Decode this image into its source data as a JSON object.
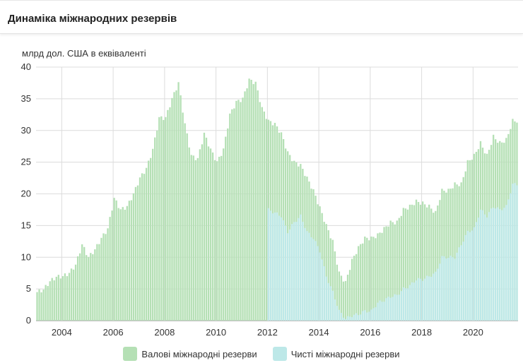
{
  "header": {
    "title": "Динаміка міжнародних резервів"
  },
  "chart_data": {
    "type": "bar",
    "title": "Динаміка міжнародних резервів",
    "ylabel": "млрд дол. США в еквіваленті",
    "xlabel": "",
    "ylim": [
      0,
      40
    ],
    "y_ticks": [
      "0",
      "5",
      "10",
      "15",
      "20",
      "25",
      "30",
      "35",
      "40"
    ],
    "x_ticks": [
      "2004",
      "2006",
      "2008",
      "2010",
      "2012",
      "2014",
      "2016",
      "2018",
      "2020"
    ],
    "x_range": [
      2003.0,
      2021.75
    ],
    "grid": true,
    "legend_position": "bottom-center",
    "series": [
      {
        "name": "Валові міжнародні резерви",
        "color": "#b5e0b5",
        "points": [
          [
            2003.0,
            4.5
          ],
          [
            2003.25,
            4.9
          ],
          [
            2003.5,
            6.2
          ],
          [
            2003.75,
            6.9
          ],
          [
            2004.0,
            7.0
          ],
          [
            2004.25,
            7.5
          ],
          [
            2004.5,
            8.8
          ],
          [
            2004.75,
            12.0
          ],
          [
            2005.0,
            10.0
          ],
          [
            2005.25,
            11.2
          ],
          [
            2005.5,
            13.0
          ],
          [
            2005.75,
            14.5
          ],
          [
            2006.0,
            19.3
          ],
          [
            2006.25,
            17.5
          ],
          [
            2006.5,
            18.0
          ],
          [
            2006.75,
            20.0
          ],
          [
            2007.0,
            22.5
          ],
          [
            2007.25,
            24.0
          ],
          [
            2007.5,
            27.0
          ],
          [
            2007.75,
            32.0
          ],
          [
            2008.0,
            32.0
          ],
          [
            2008.25,
            35.0
          ],
          [
            2008.5,
            37.5
          ],
          [
            2008.75,
            31.0
          ],
          [
            2009.0,
            26.0
          ],
          [
            2009.25,
            25.5
          ],
          [
            2009.5,
            29.5
          ],
          [
            2009.75,
            27.0
          ],
          [
            2010.0,
            25.0
          ],
          [
            2010.25,
            27.0
          ],
          [
            2010.5,
            32.5
          ],
          [
            2010.75,
            34.5
          ],
          [
            2011.0,
            35.0
          ],
          [
            2011.25,
            38.0
          ],
          [
            2011.5,
            37.5
          ],
          [
            2011.75,
            33.5
          ],
          [
            2012.0,
            31.5
          ],
          [
            2012.25,
            31.0
          ],
          [
            2012.5,
            29.5
          ],
          [
            2012.75,
            26.5
          ],
          [
            2013.0,
            25.0
          ],
          [
            2013.25,
            24.5
          ],
          [
            2013.5,
            22.5
          ],
          [
            2013.75,
            20.5
          ],
          [
            2014.0,
            17.8
          ],
          [
            2014.25,
            15.0
          ],
          [
            2014.5,
            12.5
          ],
          [
            2014.75,
            7.5
          ],
          [
            2015.0,
            6.0
          ],
          [
            2015.25,
            9.5
          ],
          [
            2015.5,
            11.5
          ],
          [
            2015.75,
            13.0
          ],
          [
            2016.0,
            13.0
          ],
          [
            2016.25,
            13.5
          ],
          [
            2016.5,
            14.5
          ],
          [
            2016.75,
            15.5
          ],
          [
            2017.0,
            15.5
          ],
          [
            2017.25,
            17.5
          ],
          [
            2017.5,
            18.0
          ],
          [
            2017.75,
            18.8
          ],
          [
            2018.0,
            18.5
          ],
          [
            2018.25,
            18.0
          ],
          [
            2018.5,
            17.0
          ],
          [
            2018.75,
            20.5
          ],
          [
            2019.0,
            20.5
          ],
          [
            2019.25,
            21.5
          ],
          [
            2019.5,
            21.5
          ],
          [
            2019.75,
            25.0
          ],
          [
            2020.0,
            26.0
          ],
          [
            2020.25,
            28.0
          ],
          [
            2020.5,
            26.0
          ],
          [
            2020.75,
            29.0
          ],
          [
            2021.0,
            28.0
          ],
          [
            2021.25,
            28.5
          ],
          [
            2021.5,
            31.5
          ]
        ]
      },
      {
        "name": "Чисті міжнародні резерви",
        "color": "#bde8e8",
        "points": [
          [
            2012.0,
            17.5
          ],
          [
            2012.25,
            17.0
          ],
          [
            2012.5,
            16.5
          ],
          [
            2012.75,
            14.0
          ],
          [
            2013.0,
            15.5
          ],
          [
            2013.25,
            16.5
          ],
          [
            2013.5,
            14.0
          ],
          [
            2013.75,
            13.0
          ],
          [
            2014.0,
            11.0
          ],
          [
            2014.25,
            7.0
          ],
          [
            2014.5,
            4.5
          ],
          [
            2014.75,
            1.5
          ],
          [
            2015.0,
            0.3
          ],
          [
            2015.25,
            0.8
          ],
          [
            2015.5,
            1.0
          ],
          [
            2015.75,
            1.5
          ],
          [
            2016.0,
            1.5
          ],
          [
            2016.25,
            2.8
          ],
          [
            2016.5,
            3.2
          ],
          [
            2016.75,
            3.8
          ],
          [
            2017.0,
            4.0
          ],
          [
            2017.25,
            5.0
          ],
          [
            2017.5,
            5.5
          ],
          [
            2017.75,
            6.5
          ],
          [
            2018.0,
            6.5
          ],
          [
            2018.25,
            7.0
          ],
          [
            2018.5,
            7.5
          ],
          [
            2018.75,
            10.0
          ],
          [
            2019.0,
            10.0
          ],
          [
            2019.25,
            10.0
          ],
          [
            2019.5,
            12.0
          ],
          [
            2019.75,
            14.0
          ],
          [
            2020.0,
            14.5
          ],
          [
            2020.25,
            17.5
          ],
          [
            2020.5,
            16.5
          ],
          [
            2020.75,
            18.0
          ],
          [
            2021.0,
            17.5
          ],
          [
            2021.25,
            18.0
          ],
          [
            2021.5,
            21.5
          ]
        ]
      }
    ]
  }
}
